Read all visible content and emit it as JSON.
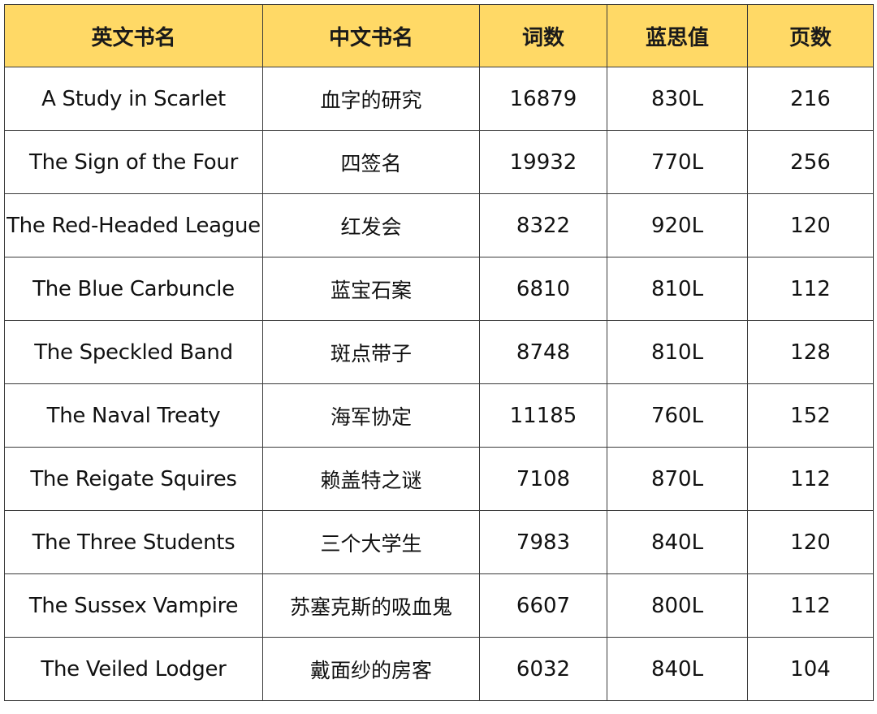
{
  "table": {
    "headers": [
      "英文书名",
      "中文书名",
      "词数",
      "蓝思值",
      "页数"
    ],
    "rows": [
      [
        "A Study in Scarlet",
        "血字的研究",
        "16879",
        "830L",
        "216"
      ],
      [
        "The Sign of the Four",
        "四签名",
        "19932",
        "770L",
        "256"
      ],
      [
        "The Red-Headed League",
        "红发会",
        "8322",
        "920L",
        "120"
      ],
      [
        "The Blue Carbuncle",
        "蓝宝石案",
        "6810",
        "810L",
        "112"
      ],
      [
        "The Speckled Band",
        "斑点带子",
        "8748",
        "810L",
        "128"
      ],
      [
        "The Naval Treaty",
        "海军协定",
        "11185",
        "760L",
        "152"
      ],
      [
        "The Reigate Squires",
        "赖盖特之谜",
        "7108",
        "870L",
        "112"
      ],
      [
        "The Three Students",
        "三个大学生",
        "7983",
        "840L",
        "120"
      ],
      [
        "The Sussex Vampire",
        "苏塞克斯的吸血鬼",
        "6607",
        "800L",
        "112"
      ],
      [
        "The Veiled Lodger",
        "戴面纱的房客",
        "6032",
        "840L",
        "104"
      ]
    ]
  },
  "colors": {
    "header_background": "#ffd966",
    "border": "#3a3a3a",
    "text": "#111111"
  }
}
